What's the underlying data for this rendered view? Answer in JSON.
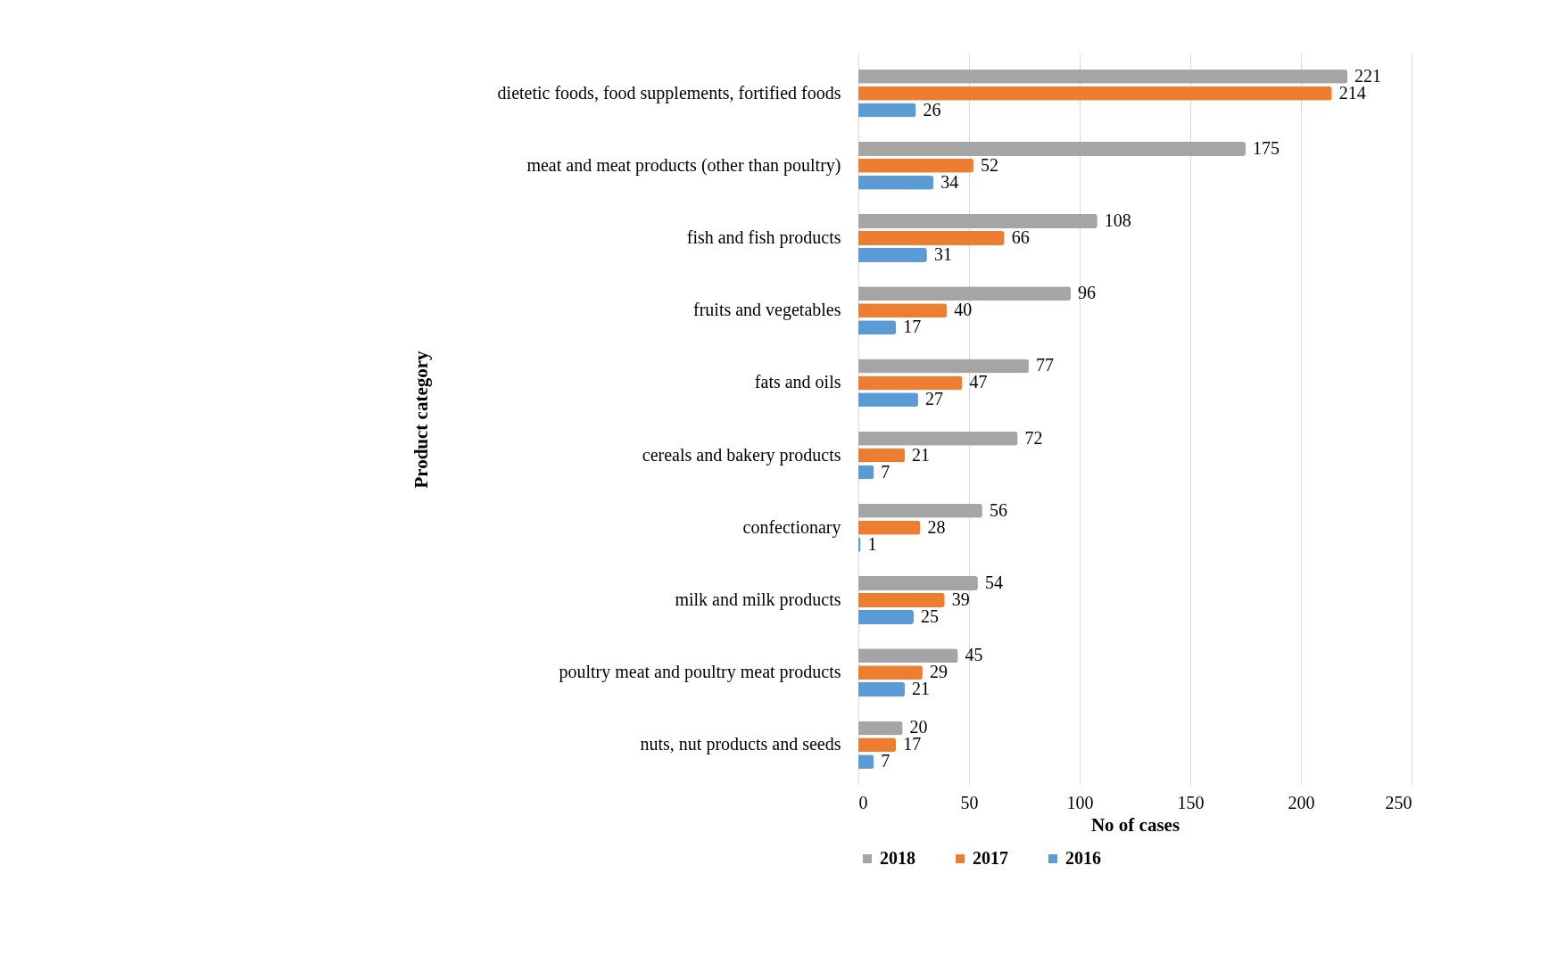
{
  "chart_data": {
    "type": "bar",
    "orientation": "horizontal",
    "xlabel": "No of cases",
    "ylabel": "Product category",
    "categories": [
      "dietetic foods, food supplements, fortified foods",
      "meat and meat products (other than poultry)",
      "fish and fish products",
      "fruits and vegetables",
      "fats and oils",
      "cereals and bakery products",
      "confectionary",
      "milk and milk products",
      "poultry meat and poultry meat products",
      "nuts, nut products and seeds"
    ],
    "series": [
      {
        "name": "2018",
        "color": "#a5a5a5",
        "values": [
          221,
          175,
          108,
          96,
          77,
          72,
          56,
          54,
          45,
          20
        ]
      },
      {
        "name": "2017",
        "color": "#ed7d31",
        "values": [
          214,
          52,
          66,
          40,
          47,
          21,
          28,
          39,
          29,
          17
        ]
      },
      {
        "name": "2016",
        "color": "#5b9bd5",
        "values": [
          26,
          34,
          31,
          17,
          27,
          7,
          1,
          25,
          21,
          7
        ]
      }
    ],
    "xlim": [
      0,
      250
    ],
    "xticks": [
      0,
      50,
      100,
      150,
      200,
      250
    ],
    "grid": "x",
    "legend": "bottom",
    "data_labels": true
  }
}
